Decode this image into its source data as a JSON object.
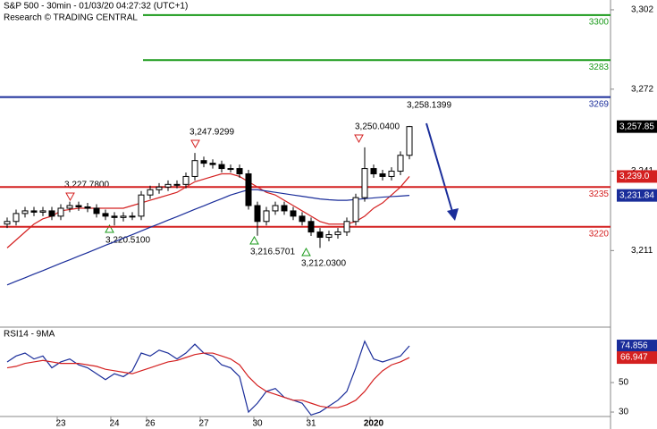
{
  "chart_data": {
    "type": "candlestick",
    "title": "S&P 500 - 30min - 01/03/20 04:27:32 (UTC+1)",
    "subtitle": "Research © TRADING CENTRAL",
    "categories": [
      null,
      null,
      null,
      null,
      null,
      null,
      "23",
      null,
      null,
      null,
      null,
      null,
      "24",
      null,
      null,
      null,
      "26",
      null,
      null,
      null,
      null,
      null,
      "27",
      null,
      null,
      null,
      null,
      null,
      "30",
      null,
      null,
      null,
      null,
      null,
      "31",
      null,
      null,
      null,
      null,
      null,
      null,
      "2020",
      null,
      null,
      null,
      null
    ],
    "opens": [
      3221,
      3222,
      3225,
      3226,
      3225.5,
      3226,
      3224,
      3227,
      3228,
      3227.5,
      3227,
      3225,
      3224,
      3223.5,
      3224,
      3224,
      3232,
      3234,
      3235,
      3236,
      3236,
      3239,
      3245,
      3244,
      3243.5,
      3242,
      3242,
      3240,
      3228,
      3222,
      3226,
      3228,
      3226,
      3224,
      3222,
      3218,
      3216,
      3217,
      3218,
      3222,
      3231,
      3242,
      3240,
      3239,
      3241,
      3247
    ],
    "highs": [
      3223.5,
      3226.5,
      3227.5,
      3227.5,
      3227.5,
      3227.5,
      3228.5,
      3229.5,
      3229.5,
      3229,
      3228.5,
      3226.5,
      3225.5,
      3225.5,
      3225.5,
      3233.5,
      3235.5,
      3236.5,
      3237.5,
      3237.5,
      3240.5,
      3247.9,
      3246.5,
      3245.5,
      3245,
      3243.5,
      3243.5,
      3241.5,
      3229.5,
      3227.5,
      3229.5,
      3229.5,
      3227.5,
      3225.5,
      3223.5,
      3219.5,
      3218.5,
      3219.5,
      3223.5,
      3232.5,
      3250,
      3243.5,
      3241.5,
      3242.5,
      3248.5,
      3258.1
    ],
    "lows": [
      3219.5,
      3220.5,
      3223.5,
      3224,
      3224,
      3222.5,
      3222.5,
      3225.5,
      3226,
      3225.5,
      3223.5,
      3222.5,
      3220.5,
      3222,
      3222.5,
      3222.5,
      3230.5,
      3232.5,
      3233.5,
      3234.5,
      3234.5,
      3237.5,
      3242.5,
      3242,
      3240.5,
      3240.5,
      3238.5,
      3226.5,
      3216.6,
      3220.5,
      3224.5,
      3224.5,
      3222.5,
      3220.5,
      3216.5,
      3212,
      3214.5,
      3215.5,
      3216.5,
      3220.5,
      3229.5,
      3238.5,
      3237.5,
      3237.5,
      3239.5,
      3245.5
    ],
    "closes": [
      3222,
      3225,
      3226,
      3225.5,
      3226,
      3224,
      3227,
      3228,
      3227.5,
      3227,
      3225,
      3224,
      3223.5,
      3224,
      3224,
      3232,
      3234,
      3235,
      3236,
      3236,
      3239,
      3245,
      3244,
      3243.5,
      3242,
      3242,
      3240,
      3228,
      3222,
      3226,
      3228,
      3226,
      3224,
      3222,
      3218,
      3216,
      3217,
      3218,
      3222,
      3231,
      3242,
      3240,
      3239,
      3241,
      3247,
      3257.85
    ],
    "series": [
      {
        "color": "#d42020",
        "values": [
          3212,
          3215,
          3218,
          3221,
          3223,
          3224,
          3226,
          3226.5,
          3227,
          3227,
          3227,
          3227,
          3227,
          3227,
          3228,
          3229,
          3230,
          3231,
          3232,
          3233,
          3235,
          3237,
          3238,
          3239,
          3240,
          3240,
          3239,
          3237,
          3235,
          3233,
          3232,
          3230,
          3228,
          3226,
          3224,
          3222,
          3221,
          3221,
          3221,
          3222,
          3224,
          3227,
          3229,
          3232,
          3235,
          3239
        ]
      },
      {
        "color": "#1a2d9a",
        "values": [
          3198,
          3199.4,
          3200.7,
          3202.1,
          3203.4,
          3204.8,
          3206.2,
          3207.5,
          3208.9,
          3210.2,
          3211.6,
          3213,
          3214.3,
          3215.7,
          3217,
          3218.4,
          3219.8,
          3221.1,
          3222.5,
          3223.8,
          3225.2,
          3226.6,
          3227.9,
          3229.3,
          3230.6,
          3232,
          3233,
          3234,
          3234,
          3233.5,
          3233,
          3232.5,
          3232,
          3231.5,
          3231,
          3230.5,
          3230.2,
          3230,
          3230,
          3230.3,
          3230.6,
          3230.9,
          3231.2,
          3231.4,
          3231.6,
          3231.84
        ]
      }
    ],
    "levels": [
      {
        "value": 3300,
        "color": "#1a9a1a"
      },
      {
        "value": 3283,
        "color": "#1a9a1a"
      },
      {
        "value": 3269,
        "color": "#1a2d9a"
      },
      {
        "value": 3235,
        "color": "#d42020"
      },
      {
        "value": 3220,
        "color": "#d42020"
      }
    ],
    "tags": [
      {
        "value": 3257.85,
        "label": "3,257.85",
        "color": "#000000"
      },
      {
        "value": 3239,
        "label": "3,239.0",
        "color": "#d42020"
      },
      {
        "value": 3231.84,
        "label": "3,231.84",
        "color": "#1a2d9a"
      }
    ],
    "annotations": [
      "3,227.7800",
      "3,220.5100",
      "3,247.9299",
      "3,216.5701",
      "3,212.0300",
      "3,250.0400",
      "3,258.1399"
    ],
    "ylim": [
      3182.4,
      3305.7
    ],
    "yticks": [
      {
        "value": 3302,
        "label": "3,302"
      },
      {
        "value": 3272,
        "label": "3,272"
      },
      {
        "value": 3241,
        "label": "3,241"
      },
      {
        "value": 3211,
        "label": "3,211"
      }
    ],
    "rsi": {
      "title": "RSI14 - 9MA",
      "ylim": [
        18.5,
        87
      ],
      "yticks": [
        30,
        50
      ],
      "series": [
        {
          "color": "#1a2d9a",
          "values": [
            64,
            68,
            70,
            66,
            68,
            60,
            64,
            66,
            62,
            60,
            56,
            52,
            56,
            54,
            58,
            70,
            68,
            72,
            70,
            66,
            70,
            76,
            70,
            68,
            62,
            60,
            54,
            30,
            36,
            44,
            46,
            40,
            38,
            36,
            28,
            30,
            34,
            38,
            44,
            60,
            78,
            66,
            64,
            66,
            68,
            74.856
          ]
        },
        {
          "color": "#d42020",
          "values": [
            60,
            61,
            63,
            64,
            65,
            64,
            63,
            63,
            63,
            62,
            61,
            59,
            58,
            57,
            56,
            58,
            60,
            62,
            64,
            65,
            67,
            69,
            70,
            70,
            68,
            66,
            62,
            54,
            48,
            44,
            42,
            40,
            38,
            38,
            36,
            34,
            33,
            33,
            35,
            38,
            44,
            52,
            58,
            62,
            64,
            66.947
          ]
        }
      ]
    }
  }
}
